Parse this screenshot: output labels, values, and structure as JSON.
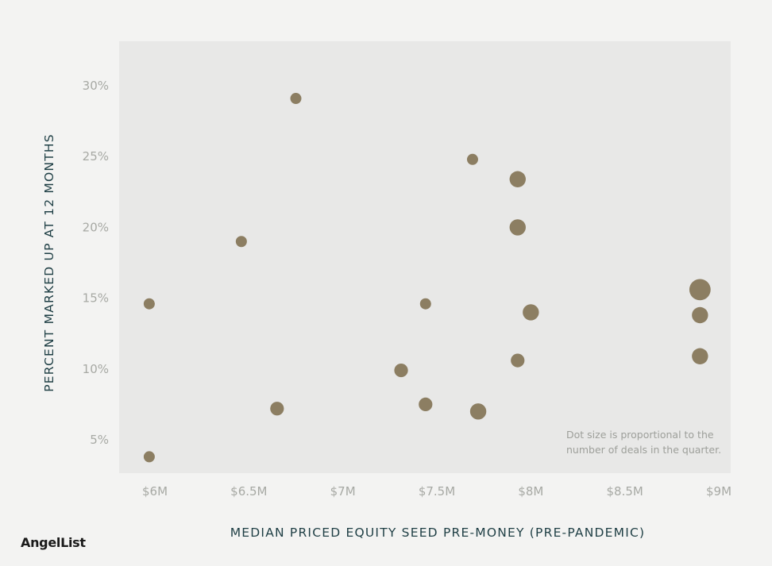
{
  "chart_data": {
    "type": "scatter",
    "xlabel": "MEDIAN PRICED EQUITY SEED PRE-MONEY (PRE-PANDEMIC)",
    "ylabel": "PERCENT MARKED UP AT 12 MONTHS",
    "xlim": [
      5.93,
      9.1
    ],
    "ylim": [
      2.3,
      32.8
    ],
    "x_ticks": [
      6,
      6.5,
      7,
      7.5,
      8,
      8.5,
      9
    ],
    "x_tick_labels": [
      "$6M",
      "$6.5M",
      "$7M",
      "$7.5M",
      "$8M",
      "$8.5M",
      "$9M"
    ],
    "y_ticks": [
      5,
      10,
      15,
      20,
      25,
      30
    ],
    "y_tick_labels": [
      "5%",
      "10%",
      "15%",
      "20%",
      "25%",
      "30%"
    ],
    "grid": false,
    "annotation": [
      "Dot size is proportional to the",
      "number of deals in the quarter."
    ],
    "marker_color": "#8c7e62",
    "plot_bg": "#e8e8e7",
    "points": [
      {
        "x": 6.75,
        "y": 29.1,
        "size": 1
      },
      {
        "x": 7.69,
        "y": 24.8,
        "size": 1
      },
      {
        "x": 7.93,
        "y": 23.4,
        "size": 3
      },
      {
        "x": 7.93,
        "y": 20.0,
        "size": 3
      },
      {
        "x": 6.46,
        "y": 19.0,
        "size": 1
      },
      {
        "x": 8.9,
        "y": 15.6,
        "size": 5
      },
      {
        "x": 5.97,
        "y": 14.6,
        "size": 1
      },
      {
        "x": 7.44,
        "y": 14.6,
        "size": 1
      },
      {
        "x": 8.0,
        "y": 14.0,
        "size": 3
      },
      {
        "x": 8.9,
        "y": 13.8,
        "size": 3
      },
      {
        "x": 8.9,
        "y": 10.9,
        "size": 3
      },
      {
        "x": 7.93,
        "y": 10.6,
        "size": 2
      },
      {
        "x": 7.31,
        "y": 9.9,
        "size": 2
      },
      {
        "x": 7.44,
        "y": 7.5,
        "size": 2
      },
      {
        "x": 6.65,
        "y": 7.2,
        "size": 2
      },
      {
        "x": 7.72,
        "y": 7.0,
        "size": 3
      },
      {
        "x": 5.97,
        "y": 3.8,
        "size": 1
      }
    ]
  },
  "brand": {
    "logo_text": "AngelList"
  }
}
